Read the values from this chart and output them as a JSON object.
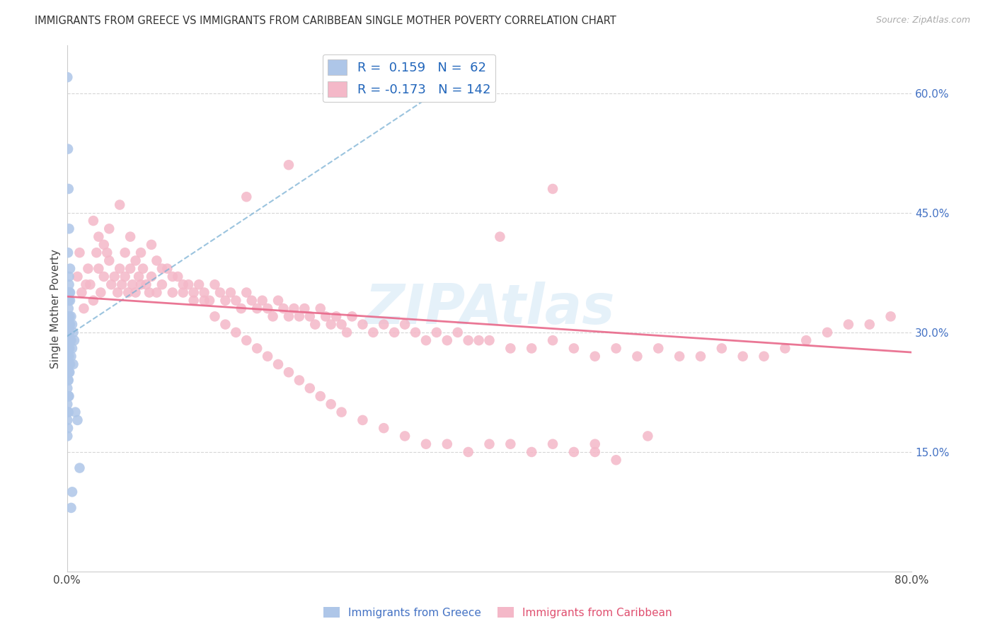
{
  "title": "IMMIGRANTS FROM GREECE VS IMMIGRANTS FROM CARIBBEAN SINGLE MOTHER POVERTY CORRELATION CHART",
  "source": "Source: ZipAtlas.com",
  "ylabel": "Single Mother Poverty",
  "x_tick_positions": [
    0.0,
    0.1,
    0.2,
    0.3,
    0.4,
    0.5,
    0.6,
    0.7,
    0.8
  ],
  "x_tick_labels": [
    "0.0%",
    "",
    "",
    "",
    "",
    "",
    "",
    "",
    "80.0%"
  ],
  "y_ticks_right": [
    0.6,
    0.45,
    0.3,
    0.15
  ],
  "y_tick_labels_right": [
    "60.0%",
    "45.0%",
    "30.0%",
    "15.0%"
  ],
  "xlim": [
    0.0,
    0.8
  ],
  "ylim": [
    0.0,
    0.66
  ],
  "greece_R": 0.159,
  "greece_N": 62,
  "caribbean_R": -0.173,
  "caribbean_N": 142,
  "greece_color": "#aec6e8",
  "caribbean_color": "#f4b8c8",
  "greece_line_color": "#7ab0d4",
  "caribbean_line_color": "#e8688a",
  "background_color": "#ffffff",
  "watermark": "ZIPAtlas",
  "legend_label_greece": "Immigrants from Greece",
  "legend_label_caribbean": "Immigrants from Caribbean",
  "greece_x": [
    0.0005,
    0.0005,
    0.0005,
    0.0005,
    0.0005,
    0.0005,
    0.0005,
    0.0005,
    0.001,
    0.001,
    0.001,
    0.001,
    0.001,
    0.001,
    0.001,
    0.001,
    0.001,
    0.0015,
    0.0015,
    0.0015,
    0.0015,
    0.0015,
    0.0015,
    0.0015,
    0.0015,
    0.002,
    0.002,
    0.002,
    0.002,
    0.002,
    0.002,
    0.002,
    0.0025,
    0.0025,
    0.0025,
    0.0025,
    0.0025,
    0.003,
    0.003,
    0.003,
    0.003,
    0.004,
    0.004,
    0.004,
    0.005,
    0.005,
    0.006,
    0.006,
    0.007,
    0.008,
    0.01,
    0.012,
    0.0005,
    0.001,
    0.0015,
    0.002,
    0.003,
    0.004,
    0.005,
    0.001,
    0.002,
    0.003
  ],
  "greece_y": [
    0.31,
    0.29,
    0.27,
    0.25,
    0.23,
    0.21,
    0.19,
    0.17,
    0.34,
    0.32,
    0.3,
    0.28,
    0.26,
    0.24,
    0.22,
    0.2,
    0.18,
    0.35,
    0.33,
    0.31,
    0.28,
    0.26,
    0.24,
    0.22,
    0.2,
    0.36,
    0.34,
    0.31,
    0.29,
    0.27,
    0.25,
    0.22,
    0.35,
    0.32,
    0.3,
    0.28,
    0.25,
    0.34,
    0.31,
    0.29,
    0.26,
    0.32,
    0.29,
    0.27,
    0.31,
    0.28,
    0.3,
    0.26,
    0.29,
    0.2,
    0.19,
    0.13,
    0.62,
    0.53,
    0.48,
    0.43,
    0.38,
    0.08,
    0.1,
    0.4,
    0.37,
    0.35
  ],
  "caribbean_x": [
    0.01,
    0.012,
    0.014,
    0.016,
    0.018,
    0.02,
    0.022,
    0.025,
    0.028,
    0.03,
    0.032,
    0.035,
    0.038,
    0.04,
    0.042,
    0.045,
    0.048,
    0.05,
    0.052,
    0.055,
    0.058,
    0.06,
    0.062,
    0.065,
    0.068,
    0.07,
    0.072,
    0.075,
    0.078,
    0.08,
    0.085,
    0.09,
    0.095,
    0.1,
    0.105,
    0.11,
    0.115,
    0.12,
    0.125,
    0.13,
    0.135,
    0.14,
    0.145,
    0.15,
    0.155,
    0.16,
    0.165,
    0.17,
    0.175,
    0.18,
    0.185,
    0.19,
    0.195,
    0.2,
    0.205,
    0.21,
    0.215,
    0.22,
    0.225,
    0.23,
    0.235,
    0.24,
    0.245,
    0.25,
    0.255,
    0.26,
    0.265,
    0.27,
    0.28,
    0.29,
    0.3,
    0.31,
    0.32,
    0.33,
    0.34,
    0.35,
    0.36,
    0.37,
    0.38,
    0.39,
    0.4,
    0.42,
    0.44,
    0.46,
    0.48,
    0.5,
    0.52,
    0.54,
    0.56,
    0.58,
    0.6,
    0.62,
    0.64,
    0.66,
    0.68,
    0.7,
    0.72,
    0.74,
    0.76,
    0.78,
    0.025,
    0.03,
    0.035,
    0.04,
    0.05,
    0.055,
    0.06,
    0.065,
    0.07,
    0.08,
    0.085,
    0.09,
    0.1,
    0.11,
    0.12,
    0.13,
    0.14,
    0.15,
    0.16,
    0.17,
    0.18,
    0.19,
    0.2,
    0.21,
    0.22,
    0.23,
    0.24,
    0.25,
    0.26,
    0.28,
    0.3,
    0.32,
    0.34,
    0.36,
    0.38,
    0.4,
    0.42,
    0.44,
    0.46,
    0.48,
    0.5,
    0.52
  ],
  "caribbean_y": [
    0.37,
    0.4,
    0.35,
    0.33,
    0.36,
    0.38,
    0.36,
    0.34,
    0.4,
    0.38,
    0.35,
    0.37,
    0.4,
    0.39,
    0.36,
    0.37,
    0.35,
    0.38,
    0.36,
    0.37,
    0.35,
    0.38,
    0.36,
    0.35,
    0.37,
    0.36,
    0.38,
    0.36,
    0.35,
    0.37,
    0.35,
    0.36,
    0.38,
    0.35,
    0.37,
    0.35,
    0.36,
    0.34,
    0.36,
    0.35,
    0.34,
    0.36,
    0.35,
    0.34,
    0.35,
    0.34,
    0.33,
    0.35,
    0.34,
    0.33,
    0.34,
    0.33,
    0.32,
    0.34,
    0.33,
    0.32,
    0.33,
    0.32,
    0.33,
    0.32,
    0.31,
    0.33,
    0.32,
    0.31,
    0.32,
    0.31,
    0.3,
    0.32,
    0.31,
    0.3,
    0.31,
    0.3,
    0.31,
    0.3,
    0.29,
    0.3,
    0.29,
    0.3,
    0.29,
    0.29,
    0.29,
    0.28,
    0.28,
    0.29,
    0.28,
    0.27,
    0.28,
    0.27,
    0.28,
    0.27,
    0.27,
    0.28,
    0.27,
    0.27,
    0.28,
    0.29,
    0.3,
    0.31,
    0.31,
    0.32,
    0.44,
    0.42,
    0.41,
    0.43,
    0.46,
    0.4,
    0.42,
    0.39,
    0.4,
    0.41,
    0.39,
    0.38,
    0.37,
    0.36,
    0.35,
    0.34,
    0.32,
    0.31,
    0.3,
    0.29,
    0.28,
    0.27,
    0.26,
    0.25,
    0.24,
    0.23,
    0.22,
    0.21,
    0.2,
    0.19,
    0.18,
    0.17,
    0.16,
    0.16,
    0.15,
    0.16,
    0.16,
    0.15,
    0.16,
    0.15,
    0.15,
    0.14
  ],
  "caribbean_extra_x": [
    0.21,
    0.17,
    0.41,
    0.46,
    0.5,
    0.55
  ],
  "caribbean_extra_y": [
    0.51,
    0.47,
    0.42,
    0.48,
    0.16,
    0.17
  ]
}
